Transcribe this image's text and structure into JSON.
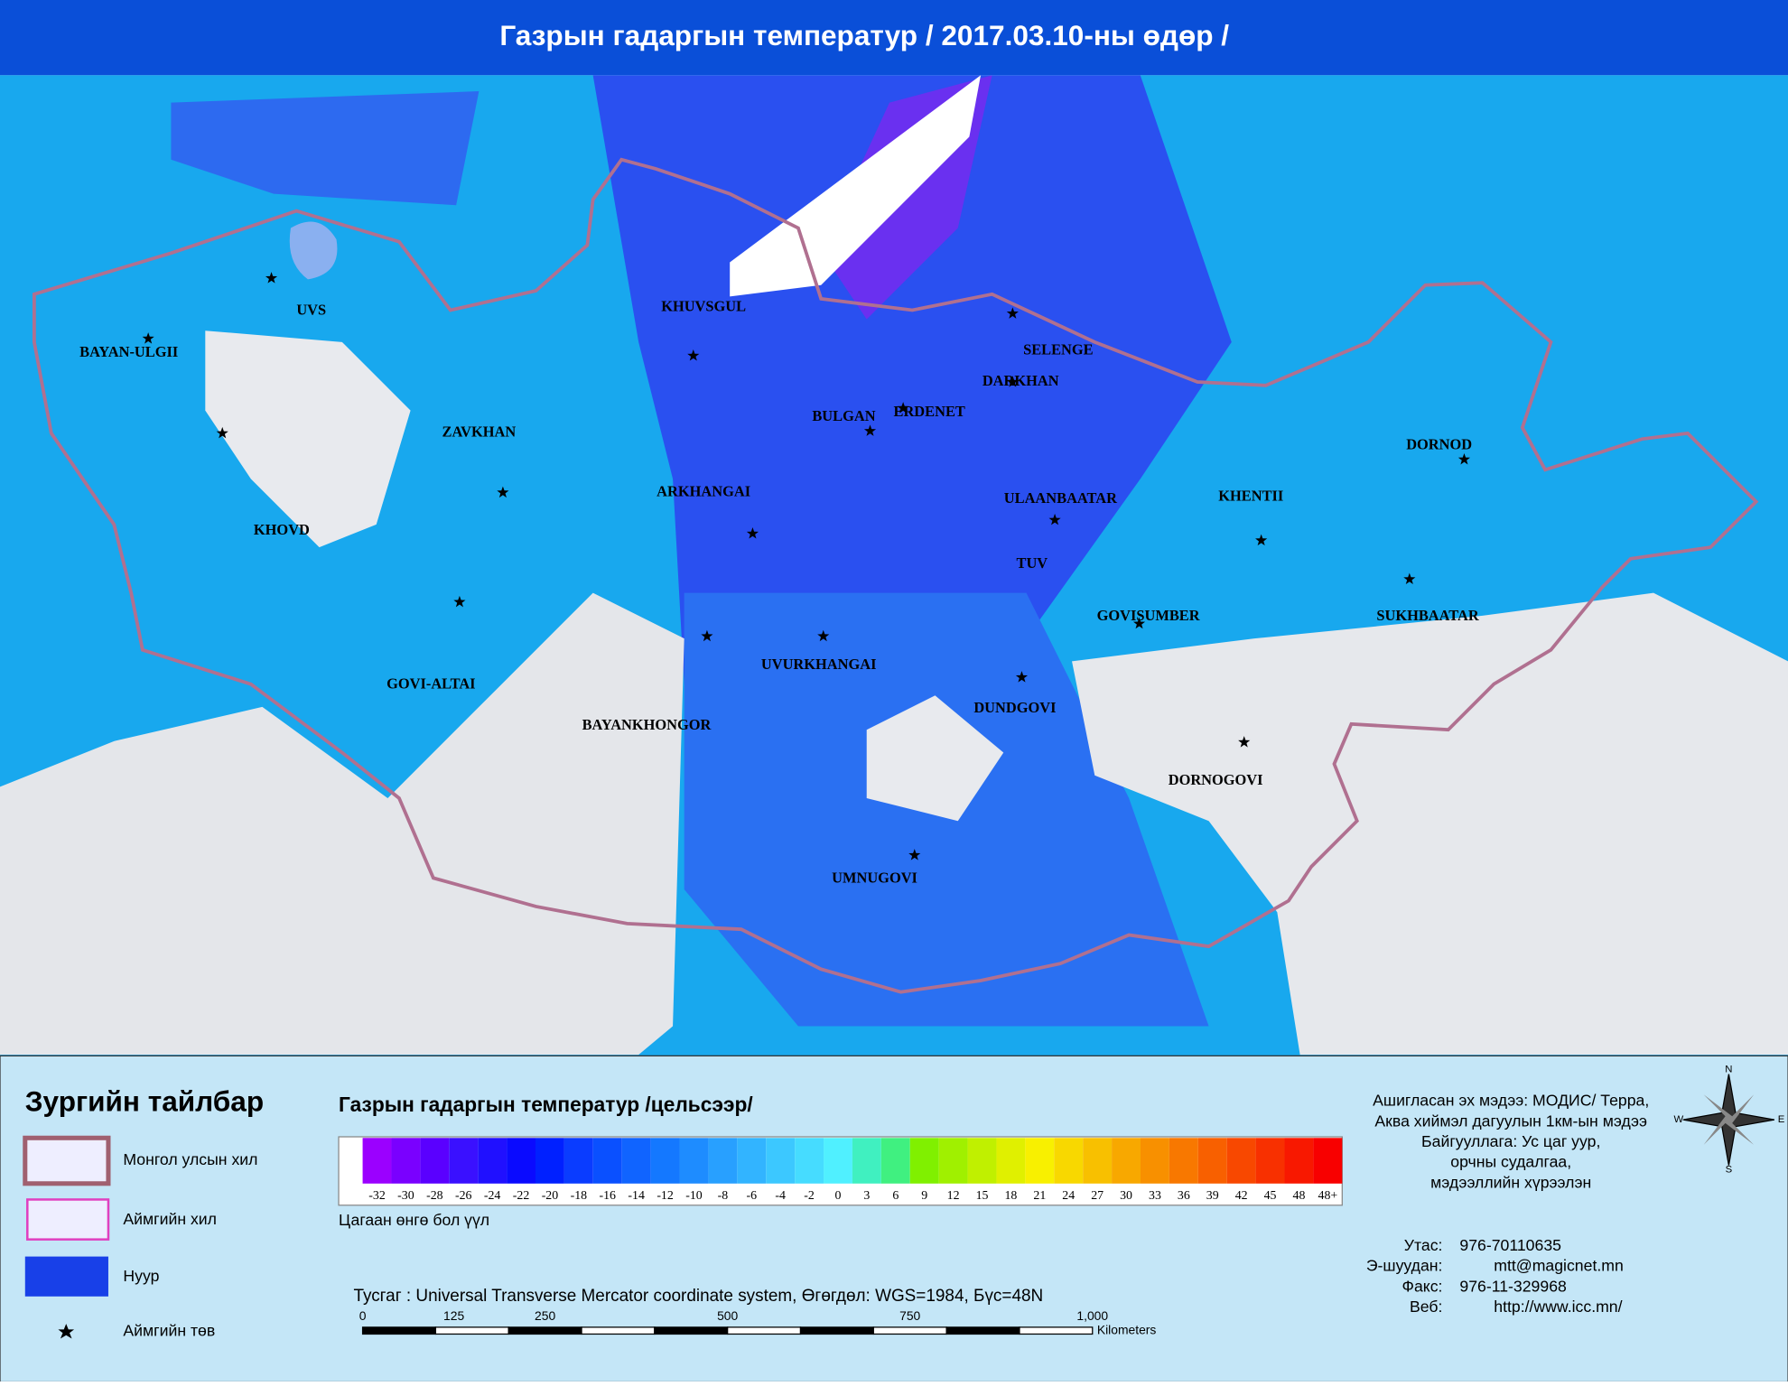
{
  "header": {
    "title": "Газрын гадаргын температур / 2017.03.10-ны өдөр /"
  },
  "map": {
    "places": [
      "UVS",
      "BAYAN-ULGII",
      "ZAVKHAN",
      "KHOVD",
      "KHUVSGUL",
      "ARKHANGAI",
      "BULGAN",
      "ERDENET",
      "SELENGE",
      "DARKHAN",
      "ULAANBAATAR",
      "TUV",
      "KHENTII",
      "DORNOD",
      "SUKHBAATAR",
      "GOVISUMBER",
      "GOVI-ALTAI",
      "BAYANKHONGOR",
      "UVURKHANGAI",
      "DUNDGOVI",
      "DORNOGOVI",
      "UMNUGOVI"
    ]
  },
  "legend": {
    "title": "Зургийн тайлбар",
    "items": [
      "Монгол улсын хил",
      "Аймгийн хил",
      "Нуур",
      "Аймгийн төв"
    ]
  },
  "color_scale": {
    "title": "Газрын гадаргын температур /цельсээр/",
    "labels": [
      "-32",
      "-30",
      "-28",
      "-26",
      "-24",
      "-22",
      "-20",
      "-18",
      "-16",
      "-14",
      "-12",
      "-10",
      "-8",
      "-6",
      "-4",
      "-2",
      "0",
      "3",
      "6",
      "9",
      "12",
      "15",
      "18",
      "21",
      "24",
      "27",
      "30",
      "33",
      "36",
      "39",
      "42",
      "45",
      "48",
      "48+"
    ],
    "colors": [
      "#9b00ff",
      "#7a00ff",
      "#5a00ff",
      "#3a10ff",
      "#2010ff",
      "#0a0aff",
      "#0020ff",
      "#0a3cff",
      "#0a50ff",
      "#1064ff",
      "#1478ff",
      "#1e8cff",
      "#28a0ff",
      "#32b4ff",
      "#3cc8ff",
      "#46dcff",
      "#50f0ff",
      "#40f0c0",
      "#40f080",
      "#80f000",
      "#a0f000",
      "#c0f000",
      "#e0f000",
      "#f8f000",
      "#f8d800",
      "#f8c000",
      "#f8a800",
      "#f89000",
      "#f87800",
      "#f86000",
      "#f84800",
      "#f83000",
      "#f81800",
      "#f80000"
    ],
    "note": "Цагаан өнгө бол үүл"
  },
  "projection": "Тусгаг : Universal Transverse Mercator coordinate system, Өгөгдөл: WGS=1984, Бүс=48N",
  "scale_bar": {
    "labels": [
      "0",
      "125",
      "250",
      "500",
      "750",
      "1,000"
    ],
    "unit": "Kilometers"
  },
  "compass": {
    "n": "N",
    "e": "E",
    "s": "S",
    "w": "W"
  },
  "source": [
    "Ашигласан эх мэдээ: МОДИС/ Терра,",
    "Аква хиймэл дагуулын 1км-ын мэдээ",
    "Байгууллага: Ус цаг уур,",
    "орчны судалгаа,",
    "мэдээллийн хүрээлэн"
  ],
  "contacts": [
    {
      "label": "Утас:",
      "value": "976-70110635"
    },
    {
      "label": "Э-шуудан:",
      "value": "mtt@magicnet.mn"
    },
    {
      "label": "Факс:",
      "value": "976-11-329968"
    },
    {
      "label": "Веб:",
      "value": "http://www.icc.mn/"
    }
  ]
}
